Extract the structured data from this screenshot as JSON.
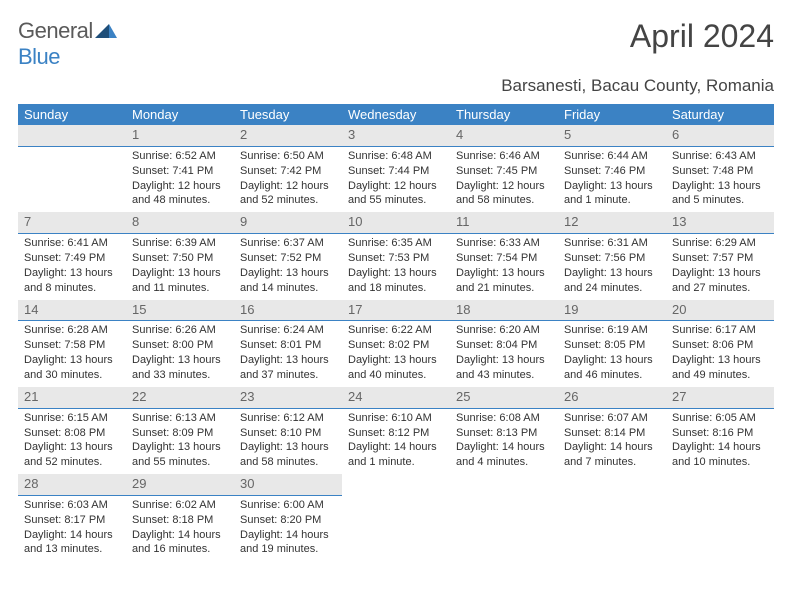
{
  "logo": {
    "word1": "General",
    "word2": "Blue"
  },
  "title": "April 2024",
  "location": "Barsanesti, Bacau County, Romania",
  "weekday_labels": [
    "Sunday",
    "Monday",
    "Tuesday",
    "Wednesday",
    "Thursday",
    "Friday",
    "Saturday"
  ],
  "colors": {
    "header_bg": "#3b82c4",
    "header_text": "#ffffff",
    "daynum_bg": "#e8e8e8",
    "daynum_border": "#3b82c4",
    "body_text": "#333333",
    "title_text": "#444444"
  },
  "weeks": [
    [
      {
        "num": "",
        "sunrise": "",
        "sunset": "",
        "daylight1": "",
        "daylight2": ""
      },
      {
        "num": "1",
        "sunrise": "Sunrise: 6:52 AM",
        "sunset": "Sunset: 7:41 PM",
        "daylight1": "Daylight: 12 hours",
        "daylight2": "and 48 minutes."
      },
      {
        "num": "2",
        "sunrise": "Sunrise: 6:50 AM",
        "sunset": "Sunset: 7:42 PM",
        "daylight1": "Daylight: 12 hours",
        "daylight2": "and 52 minutes."
      },
      {
        "num": "3",
        "sunrise": "Sunrise: 6:48 AM",
        "sunset": "Sunset: 7:44 PM",
        "daylight1": "Daylight: 12 hours",
        "daylight2": "and 55 minutes."
      },
      {
        "num": "4",
        "sunrise": "Sunrise: 6:46 AM",
        "sunset": "Sunset: 7:45 PM",
        "daylight1": "Daylight: 12 hours",
        "daylight2": "and 58 minutes."
      },
      {
        "num": "5",
        "sunrise": "Sunrise: 6:44 AM",
        "sunset": "Sunset: 7:46 PM",
        "daylight1": "Daylight: 13 hours",
        "daylight2": "and 1 minute."
      },
      {
        "num": "6",
        "sunrise": "Sunrise: 6:43 AM",
        "sunset": "Sunset: 7:48 PM",
        "daylight1": "Daylight: 13 hours",
        "daylight2": "and 5 minutes."
      }
    ],
    [
      {
        "num": "7",
        "sunrise": "Sunrise: 6:41 AM",
        "sunset": "Sunset: 7:49 PM",
        "daylight1": "Daylight: 13 hours",
        "daylight2": "and 8 minutes."
      },
      {
        "num": "8",
        "sunrise": "Sunrise: 6:39 AM",
        "sunset": "Sunset: 7:50 PM",
        "daylight1": "Daylight: 13 hours",
        "daylight2": "and 11 minutes."
      },
      {
        "num": "9",
        "sunrise": "Sunrise: 6:37 AM",
        "sunset": "Sunset: 7:52 PM",
        "daylight1": "Daylight: 13 hours",
        "daylight2": "and 14 minutes."
      },
      {
        "num": "10",
        "sunrise": "Sunrise: 6:35 AM",
        "sunset": "Sunset: 7:53 PM",
        "daylight1": "Daylight: 13 hours",
        "daylight2": "and 18 minutes."
      },
      {
        "num": "11",
        "sunrise": "Sunrise: 6:33 AM",
        "sunset": "Sunset: 7:54 PM",
        "daylight1": "Daylight: 13 hours",
        "daylight2": "and 21 minutes."
      },
      {
        "num": "12",
        "sunrise": "Sunrise: 6:31 AM",
        "sunset": "Sunset: 7:56 PM",
        "daylight1": "Daylight: 13 hours",
        "daylight2": "and 24 minutes."
      },
      {
        "num": "13",
        "sunrise": "Sunrise: 6:29 AM",
        "sunset": "Sunset: 7:57 PM",
        "daylight1": "Daylight: 13 hours",
        "daylight2": "and 27 minutes."
      }
    ],
    [
      {
        "num": "14",
        "sunrise": "Sunrise: 6:28 AM",
        "sunset": "Sunset: 7:58 PM",
        "daylight1": "Daylight: 13 hours",
        "daylight2": "and 30 minutes."
      },
      {
        "num": "15",
        "sunrise": "Sunrise: 6:26 AM",
        "sunset": "Sunset: 8:00 PM",
        "daylight1": "Daylight: 13 hours",
        "daylight2": "and 33 minutes."
      },
      {
        "num": "16",
        "sunrise": "Sunrise: 6:24 AM",
        "sunset": "Sunset: 8:01 PM",
        "daylight1": "Daylight: 13 hours",
        "daylight2": "and 37 minutes."
      },
      {
        "num": "17",
        "sunrise": "Sunrise: 6:22 AM",
        "sunset": "Sunset: 8:02 PM",
        "daylight1": "Daylight: 13 hours",
        "daylight2": "and 40 minutes."
      },
      {
        "num": "18",
        "sunrise": "Sunrise: 6:20 AM",
        "sunset": "Sunset: 8:04 PM",
        "daylight1": "Daylight: 13 hours",
        "daylight2": "and 43 minutes."
      },
      {
        "num": "19",
        "sunrise": "Sunrise: 6:19 AM",
        "sunset": "Sunset: 8:05 PM",
        "daylight1": "Daylight: 13 hours",
        "daylight2": "and 46 minutes."
      },
      {
        "num": "20",
        "sunrise": "Sunrise: 6:17 AM",
        "sunset": "Sunset: 8:06 PM",
        "daylight1": "Daylight: 13 hours",
        "daylight2": "and 49 minutes."
      }
    ],
    [
      {
        "num": "21",
        "sunrise": "Sunrise: 6:15 AM",
        "sunset": "Sunset: 8:08 PM",
        "daylight1": "Daylight: 13 hours",
        "daylight2": "and 52 minutes."
      },
      {
        "num": "22",
        "sunrise": "Sunrise: 6:13 AM",
        "sunset": "Sunset: 8:09 PM",
        "daylight1": "Daylight: 13 hours",
        "daylight2": "and 55 minutes."
      },
      {
        "num": "23",
        "sunrise": "Sunrise: 6:12 AM",
        "sunset": "Sunset: 8:10 PM",
        "daylight1": "Daylight: 13 hours",
        "daylight2": "and 58 minutes."
      },
      {
        "num": "24",
        "sunrise": "Sunrise: 6:10 AM",
        "sunset": "Sunset: 8:12 PM",
        "daylight1": "Daylight: 14 hours",
        "daylight2": "and 1 minute."
      },
      {
        "num": "25",
        "sunrise": "Sunrise: 6:08 AM",
        "sunset": "Sunset: 8:13 PM",
        "daylight1": "Daylight: 14 hours",
        "daylight2": "and 4 minutes."
      },
      {
        "num": "26",
        "sunrise": "Sunrise: 6:07 AM",
        "sunset": "Sunset: 8:14 PM",
        "daylight1": "Daylight: 14 hours",
        "daylight2": "and 7 minutes."
      },
      {
        "num": "27",
        "sunrise": "Sunrise: 6:05 AM",
        "sunset": "Sunset: 8:16 PM",
        "daylight1": "Daylight: 14 hours",
        "daylight2": "and 10 minutes."
      }
    ],
    [
      {
        "num": "28",
        "sunrise": "Sunrise: 6:03 AM",
        "sunset": "Sunset: 8:17 PM",
        "daylight1": "Daylight: 14 hours",
        "daylight2": "and 13 minutes."
      },
      {
        "num": "29",
        "sunrise": "Sunrise: 6:02 AM",
        "sunset": "Sunset: 8:18 PM",
        "daylight1": "Daylight: 14 hours",
        "daylight2": "and 16 minutes."
      },
      {
        "num": "30",
        "sunrise": "Sunrise: 6:00 AM",
        "sunset": "Sunset: 8:20 PM",
        "daylight1": "Daylight: 14 hours",
        "daylight2": "and 19 minutes."
      },
      {
        "num": "",
        "sunrise": "",
        "sunset": "",
        "daylight1": "",
        "daylight2": ""
      },
      {
        "num": "",
        "sunrise": "",
        "sunset": "",
        "daylight1": "",
        "daylight2": ""
      },
      {
        "num": "",
        "sunrise": "",
        "sunset": "",
        "daylight1": "",
        "daylight2": ""
      },
      {
        "num": "",
        "sunrise": "",
        "sunset": "",
        "daylight1": "",
        "daylight2": ""
      }
    ]
  ]
}
